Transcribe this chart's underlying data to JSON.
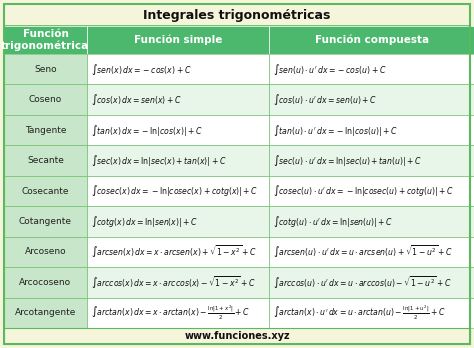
{
  "title": "Integrales trigonométricas",
  "col_headers": [
    "Función\ntrigonométrica",
    "Función simple",
    "Función compuesta"
  ],
  "rows": [
    {
      "name": "Seno",
      "simple": "$\\int sen(x)\\, dx = -cos(x) + C$",
      "compuesta": "$\\int sen(u) \\cdot u'\\, dx = -cos(u) + C$"
    },
    {
      "name": "Coseno",
      "simple": "$\\int cos(x)\\, dx = sen(x) + C$",
      "compuesta": "$\\int cos(u) \\cdot u'\\, dx = sen(u) + C$"
    },
    {
      "name": "Tangente",
      "simple": "$\\int tan(x)\\, dx = -\\ln|cos(x)| + C$",
      "compuesta": "$\\int tan(u) \\cdot u'\\, dx = -\\ln|cos(u)| + C$"
    },
    {
      "name": "Secante",
      "simple": "$\\int sec(x)\\, dx = \\ln|sec(x) + tan(x)| + C$",
      "compuesta": "$\\int sec(u) \\cdot u'\\, dx = \\ln|sec(u) + tan(u)| + C$"
    },
    {
      "name": "Cosecante",
      "simple": "$\\int cosec(x)\\, dx = -\\ln|cosec(x) + cotg(x)| + C$",
      "compuesta": "$\\int cosec(u) \\cdot u'\\, dx = -\\ln|cosec(u) + cotg(u)| + C$"
    },
    {
      "name": "Cotangente",
      "simple": "$\\int cotg(x)\\, dx = \\ln|sen(x)| + C$",
      "compuesta": "$\\int cotg(u) \\cdot u'\\, dx = \\ln|sen(u)| + C$"
    },
    {
      "name": "Arcoseno",
      "simple": "$\\int arcsen(x)\\, dx = x \\cdot arcsen(x) + \\sqrt{1-x^2} + C$",
      "compuesta": "$\\int arcsen(u) \\cdot u'\\, dx = u \\cdot arcsen(u) + \\sqrt{1-u^2} + C$"
    },
    {
      "name": "Arcocoseno",
      "simple": "$\\int arccos(x)\\, dx = x \\cdot arccos(x) - \\sqrt{1-x^2} + C$",
      "compuesta": "$\\int arccos(u) \\cdot u'\\, dx = u \\cdot arccos(u) - \\sqrt{1-u^2} + C$"
    },
    {
      "name": "Arcotangente",
      "simple": "$\\int arctan(x)\\, dx = x \\cdot arctan(x) - \\frac{\\ln|1+x^2|}{2} + C$",
      "compuesta": "$\\int arctan(x) \\cdot u'\\, dx = u \\cdot arctan(u) - \\frac{\\ln|1+u^2|}{2} + C$"
    }
  ],
  "footer": "www.funciones.xyz",
  "bg_color": "#f5f5dc",
  "header_bg": "#4cb86e",
  "row_bg_light": "#e8f5e9",
  "row_bg_white": "#ffffff",
  "header_text_color": "#ffffff",
  "border_color": "#5cb85c",
  "col1_bg": "#c8e6c9",
  "title_bg": "#f5f5dc"
}
